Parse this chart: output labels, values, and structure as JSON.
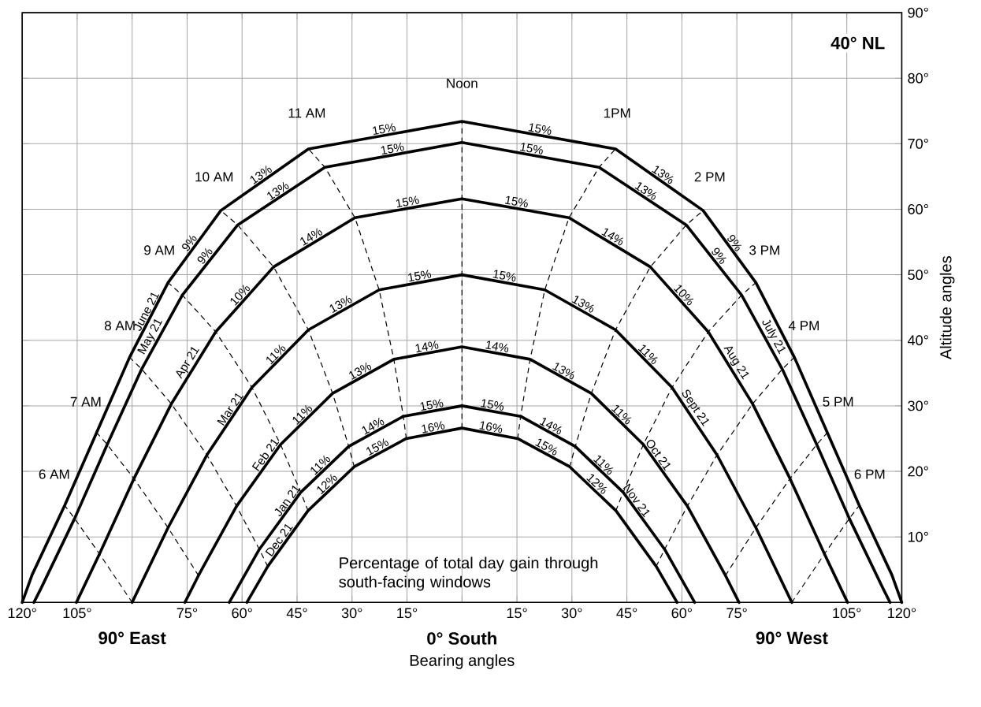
{
  "chart_data": {
    "type": "line",
    "xlabel": "Bearing angles",
    "ylabel": "Altitude angles",
    "grid": true,
    "xlim": [
      -120,
      120
    ],
    "ylim": [
      0,
      90
    ],
    "xticks": [
      {
        "value": -120,
        "label": "120°"
      },
      {
        "value": -105,
        "label": "105°"
      },
      {
        "value": -90,
        "label": null
      },
      {
        "value": -75,
        "label": "75°"
      },
      {
        "value": -60,
        "label": "60°"
      },
      {
        "value": -45,
        "label": "45°"
      },
      {
        "value": -30,
        "label": "30°"
      },
      {
        "value": -15,
        "label": "15°"
      },
      {
        "value": 0,
        "label": null
      },
      {
        "value": 15,
        "label": "15°"
      },
      {
        "value": 30,
        "label": "30°"
      },
      {
        "value": 45,
        "label": "45°"
      },
      {
        "value": 60,
        "label": "60°"
      },
      {
        "value": 75,
        "label": "75°"
      },
      {
        "value": 90,
        "label": null
      },
      {
        "value": 105,
        "label": "105°"
      },
      {
        "value": 120,
        "label": "120°"
      }
    ],
    "yticks": [
      {
        "value": 10,
        "label": "10°"
      },
      {
        "value": 20,
        "label": "20°"
      },
      {
        "value": 30,
        "label": "30°"
      },
      {
        "value": 40,
        "label": "40°"
      },
      {
        "value": 50,
        "label": "50°"
      },
      {
        "value": 60,
        "label": "60°"
      },
      {
        "value": 70,
        "label": "70°"
      },
      {
        "value": 80,
        "label": "80°"
      },
      {
        "value": 90,
        "label": "90°"
      }
    ],
    "series": [
      {
        "color": "#000000",
        "line_style": "solid",
        "x": [
          -120,
          -117.3,
          -108.4,
          -99.7,
          -90.7,
          -80.2,
          -65.8,
          -41.9,
          0,
          41.9,
          65.8,
          80.2,
          90.7,
          99.7,
          108.4,
          117.3,
          120
        ],
        "values": [
          0,
          4.2,
          14.8,
          25.9,
          37.4,
          48.8,
          59.8,
          69.2,
          73.4,
          69.2,
          59.8,
          48.8,
          37.4,
          25.9,
          14.8,
          4.2,
          0
        ]
      },
      {
        "color": "#000000",
        "line_style": "solid",
        "x": [
          -116.8,
          -114.9,
          -105.7,
          -96.8,
          -87.4,
          -76.3,
          -61.2,
          -37.4,
          0,
          37.4,
          61.2,
          76.3,
          87.4,
          96.8,
          105.7,
          114.9,
          116.8
        ],
        "values": [
          0,
          2.1,
          12.8,
          24.1,
          35.6,
          46.9,
          57.6,
          66.4,
          70.2,
          66.4,
          57.6,
          46.9,
          35.6,
          24.1,
          12.8,
          2.1,
          0
        ]
      },
      {
        "color": "#000000",
        "line_style": "solid",
        "x": [
          -105.2,
          -98.9,
          -89.5,
          -79.3,
          -67.2,
          -51.4,
          -29.2,
          0,
          29.2,
          51.4,
          67.2,
          79.3,
          89.5,
          98.9,
          105.2
        ],
        "values": [
          0,
          7.4,
          18.9,
          30.3,
          41.3,
          51.2,
          58.7,
          61.6,
          58.7,
          51.2,
          41.3,
          30.3,
          18.9,
          7.4,
          0
        ]
      },
      {
        "color": "#000000",
        "line_style": "solid",
        "x": [
          -90,
          -80.2,
          -69.6,
          -57.3,
          -41.9,
          -22.6,
          0,
          22.6,
          41.9,
          57.3,
          69.6,
          80.2,
          90
        ],
        "values": [
          0,
          11.4,
          22.5,
          32.8,
          41.6,
          47.7,
          50,
          47.7,
          41.6,
          32.8,
          22.5,
          11.4,
          0
        ]
      },
      {
        "color": "#000000",
        "line_style": "solid",
        "x": [
          -75.6,
          -71.9,
          -61.5,
          -49.5,
          -35.3,
          -18.6,
          0,
          18.6,
          35.3,
          49.5,
          61.5,
          71.9,
          75.6
        ],
        "values": [
          0,
          4.1,
          14.7,
          24.1,
          31.9,
          37.1,
          39,
          37.1,
          31.9,
          24.1,
          14.7,
          4.1,
          0
        ]
      },
      {
        "color": "#000000",
        "line_style": "solid",
        "x": [
          -63.5,
          -55.3,
          -44,
          -30.9,
          -16,
          0,
          16,
          30.9,
          44,
          55.3,
          63.5
        ],
        "values": [
          0,
          8.1,
          16.8,
          23.8,
          28.4,
          30,
          28.4,
          23.8,
          16.8,
          8.1,
          0
        ]
      },
      {
        "color": "#000000",
        "line_style": "solid",
        "x": [
          -58.7,
          -53,
          -42,
          -29.4,
          -15.2,
          0,
          15.2,
          29.4,
          42,
          53,
          58.7
        ],
        "values": [
          0,
          5.5,
          14,
          20.7,
          25,
          26.6,
          25,
          20.7,
          14,
          5.5,
          0
        ]
      },
      {
        "color": "#000000",
        "line_style": "dashed",
        "x": [
          0,
          0,
          0,
          0,
          0,
          0,
          0
        ],
        "values": [
          26.6,
          30,
          39,
          50,
          61.6,
          70.2,
          73.4
        ]
      },
      {
        "color": "#000000",
        "line_style": "dashed",
        "x": [
          -15.2,
          -16,
          -18.6,
          -22.6,
          -29.2,
          -37.4,
          -41.9
        ],
        "values": [
          25,
          28.4,
          37.1,
          47.7,
          58.7,
          66.4,
          69.2
        ]
      },
      {
        "color": "#000000",
        "line_style": "dashed",
        "x": [
          15.2,
          16,
          18.6,
          22.6,
          29.2,
          37.4,
          41.9
        ],
        "values": [
          25,
          28.4,
          37.1,
          47.7,
          58.7,
          66.4,
          69.2
        ]
      },
      {
        "color": "#000000",
        "line_style": "dashed",
        "x": [
          -29.4,
          -30.9,
          -35.3,
          -41.9,
          -51.4,
          -61.2,
          -65.8
        ],
        "values": [
          20.7,
          23.8,
          31.9,
          41.6,
          51.2,
          57.6,
          59.8
        ]
      },
      {
        "color": "#000000",
        "line_style": "dashed",
        "x": [
          29.4,
          30.9,
          35.3,
          41.9,
          51.4,
          61.2,
          65.8
        ],
        "values": [
          20.7,
          23.8,
          31.9,
          41.6,
          51.2,
          57.6,
          59.8
        ]
      },
      {
        "color": "#000000",
        "line_style": "dashed",
        "x": [
          -42,
          -44,
          -49.5,
          -57.3,
          -67.2,
          -76.3,
          -80.2
        ],
        "values": [
          14,
          16.8,
          24.1,
          32.8,
          41.3,
          46.9,
          48.8
        ]
      },
      {
        "color": "#000000",
        "line_style": "dashed",
        "x": [
          42,
          44,
          49.5,
          57.3,
          67.2,
          76.3,
          80.2
        ],
        "values": [
          14,
          16.8,
          24.1,
          32.8,
          41.3,
          46.9,
          48.8
        ]
      },
      {
        "color": "#000000",
        "line_style": "dashed",
        "x": [
          -53,
          -55.3,
          -61.5,
          -69.6,
          -79.3,
          -87.4,
          -90.7
        ],
        "values": [
          5.5,
          8.1,
          14.7,
          22.5,
          30.3,
          35.6,
          37.4
        ]
      },
      {
        "color": "#000000",
        "line_style": "dashed",
        "x": [
          53,
          55.3,
          61.5,
          69.6,
          79.3,
          87.4,
          90.7
        ],
        "values": [
          5.5,
          8.1,
          14.7,
          22.5,
          30.3,
          35.6,
          37.4
        ]
      },
      {
        "color": "#000000",
        "line_style": "dashed",
        "x": [
          -71.9,
          -80.2,
          -89.5,
          -96.8,
          -99.7
        ],
        "values": [
          4.1,
          11.4,
          18.9,
          24.1,
          25.9
        ]
      },
      {
        "color": "#000000",
        "line_style": "dashed",
        "x": [
          71.9,
          80.2,
          89.5,
          96.8,
          99.7
        ],
        "values": [
          4.1,
          11.4,
          18.9,
          24.1,
          25.9
        ]
      },
      {
        "color": "#000000",
        "line_style": "dashed",
        "x": [
          -90,
          -98.9,
          -105.7,
          -108.4
        ],
        "values": [
          0,
          7.4,
          12.8,
          14.8
        ]
      },
      {
        "color": "#000000",
        "line_style": "dashed",
        "x": [
          90,
          98.9,
          105.7,
          108.4
        ],
        "values": [
          0,
          7.4,
          12.8,
          14.8
        ]
      }
    ],
    "annotations": [
      "Percentage of total day gain through south-facing windows",
      "40° NL",
      "90° East",
      "0° South",
      "90° West",
      "6 AM",
      "7 AM",
      "8 AM",
      "9 AM",
      "10 AM",
      "11 AM",
      "Noon",
      "1PM",
      "2 PM",
      "3 PM",
      "4 PM",
      "5 PM",
      "6 PM",
      {
        "text": "June 21",
        "x": -84.6,
        "y": 44
      },
      {
        "text": "May 21",
        "x": -83.1,
        "y": 40
      },
      {
        "text": "Apr 21",
        "x": -73,
        "y": 36
      },
      {
        "text": "Mar 21",
        "x": -61.8,
        "y": 29
      },
      {
        "text": "Feb 21",
        "x": -52.2,
        "y": 22
      },
      {
        "text": "Jan 21",
        "x": -46.3,
        "y": 15
      },
      {
        "text": "Dec 21",
        "x": -48.5,
        "y": 9
      },
      {
        "text": "July 21",
        "x": 83.1,
        "y": 40
      },
      {
        "text": "Aug 21",
        "x": 73,
        "y": 36
      },
      {
        "text": "Sept 21",
        "x": 61.8,
        "y": 29
      },
      {
        "text": "Oct 21",
        "x": 52.2,
        "y": 22
      },
      {
        "text": "Nov 21",
        "x": 46.3,
        "y": 15
      },
      {
        "text": "15%",
        "x": -21,
        "y": 71.3
      },
      {
        "text": "13%",
        "x": -53.9,
        "y": 64.5
      },
      {
        "text": "9%",
        "x": -73,
        "y": 54.3
      },
      {
        "text": "15%",
        "x": -18.7,
        "y": 68.3
      },
      {
        "text": "13%",
        "x": -49.3,
        "y": 62
      },
      {
        "text": "9%",
        "x": -68.8,
        "y": 52.3
      },
      {
        "text": "15%",
        "x": -14.6,
        "y": 60.2
      },
      {
        "text": "14%",
        "x": -40.3,
        "y": 55
      },
      {
        "text": "10%",
        "x": -59.3,
        "y": 46.3
      },
      {
        "text": "15%",
        "x": -11.3,
        "y": 48.9
      },
      {
        "text": "13%",
        "x": -32.3,
        "y": 44.7
      },
      {
        "text": "11%",
        "x": -49.6,
        "y": 37.2
      },
      {
        "text": "14%",
        "x": -9.3,
        "y": 38.1
      },
      {
        "text": "13%",
        "x": -27,
        "y": 34.5
      },
      {
        "text": "11%",
        "x": -42.4,
        "y": 28
      },
      {
        "text": "15%",
        "x": -8,
        "y": 29.2
      },
      {
        "text": "14%",
        "x": -23.5,
        "y": 26.1
      },
      {
        "text": "11%",
        "x": -37.5,
        "y": 20.3
      },
      {
        "text": "16%",
        "x": -7.6,
        "y": 25.8
      },
      {
        "text": "15%",
        "x": -22.3,
        "y": 22.9
      },
      {
        "text": "12%",
        "x": -35.7,
        "y": 17.4
      },
      {
        "text": "15%",
        "x": 21,
        "y": 71.3
      },
      {
        "text": "13%",
        "x": 53.9,
        "y": 64.5
      },
      {
        "text": "9%",
        "x": 73,
        "y": 54.3
      },
      {
        "text": "15%",
        "x": 18.7,
        "y": 68.3
      },
      {
        "text": "13%",
        "x": 49.3,
        "y": 62
      },
      {
        "text": "9%",
        "x": 68.8,
        "y": 52.3
      },
      {
        "text": "15%",
        "x": 14.6,
        "y": 60.2
      },
      {
        "text": "14%",
        "x": 40.3,
        "y": 55
      },
      {
        "text": "10%",
        "x": 59.3,
        "y": 46.3
      },
      {
        "text": "15%",
        "x": 11.3,
        "y": 48.9
      },
      {
        "text": "13%",
        "x": 32.3,
        "y": 44.7
      },
      {
        "text": "11%",
        "x": 49.6,
        "y": 37.2
      },
      {
        "text": "14%",
        "x": 9.3,
        "y": 38.1
      },
      {
        "text": "13%",
        "x": 27,
        "y": 34.5
      },
      {
        "text": "11%",
        "x": 42.4,
        "y": 28
      },
      {
        "text": "15%",
        "x": 8,
        "y": 29.2
      },
      {
        "text": "14%",
        "x": 23.5,
        "y": 26.1
      },
      {
        "text": "11%",
        "x": 37.5,
        "y": 20.3
      },
      {
        "text": "16%",
        "x": 7.6,
        "y": 25.8
      },
      {
        "text": "15%",
        "x": 22.3,
        "y": 22.9
      },
      {
        "text": "12%",
        "x": 35.7,
        "y": 17.4
      }
    ]
  }
}
